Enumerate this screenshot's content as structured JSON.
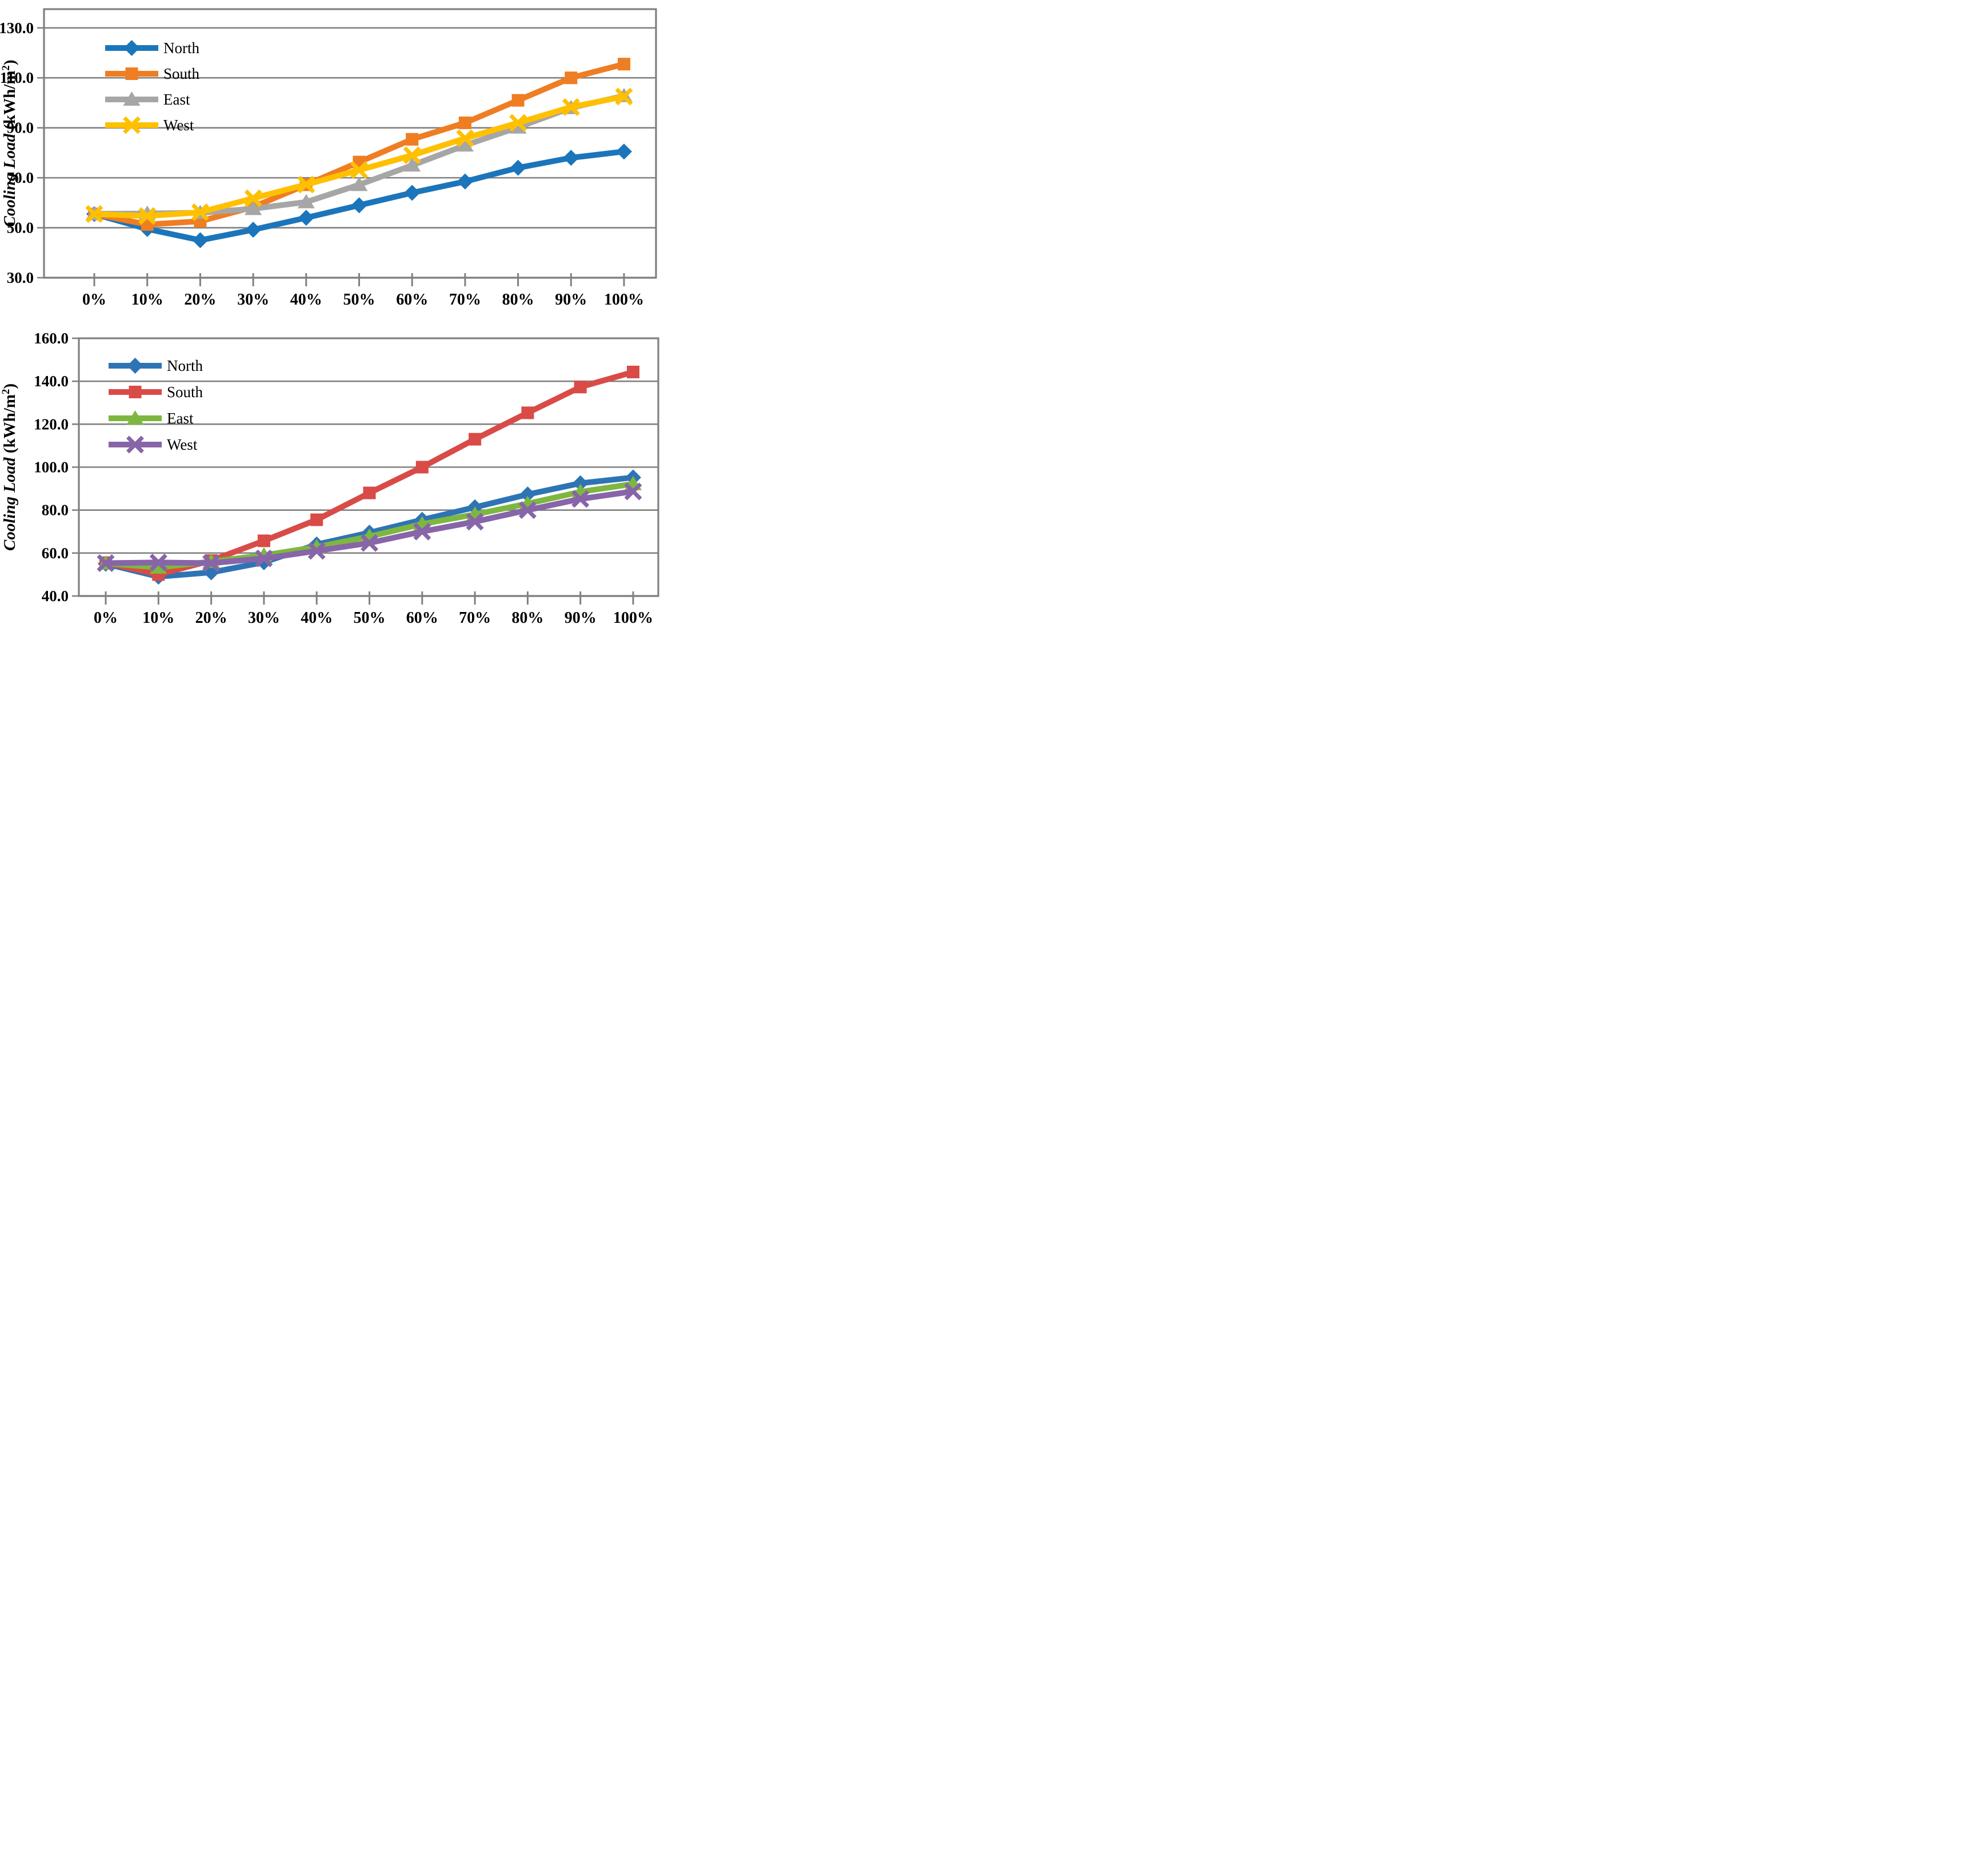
{
  "page": {
    "background": "#ffffff",
    "figure_description": "Two stacked line charts of cooling load versus glazing percentage for four facade orientations"
  },
  "chart_data": [
    {
      "id": "top",
      "type": "line",
      "title": "",
      "xlabel": "",
      "ylabel_italic": "Cooling Load",
      "ylabel_units_prefix": "(kWh/m",
      "ylabel_sup": "2",
      "ylabel_units_suffix": ")",
      "categories": [
        "0%",
        "10%",
        "20%",
        "30%",
        "40%",
        "50%",
        "60%",
        "70%",
        "80%",
        "90%",
        "100%"
      ],
      "ylim": [
        30,
        137.5
      ],
      "yticks": [
        30,
        50,
        70,
        90,
        110,
        130
      ],
      "grid": true,
      "legend_position": "inside-top-left",
      "frame_color": "#808080",
      "series": [
        {
          "name": "North",
          "color": "#1B75BB",
          "marker": "diamond",
          "values": [
            55.5,
            49.5,
            45.0,
            49.2,
            54.0,
            59.0,
            64.0,
            68.5,
            74.0,
            78.0,
            80.5
          ]
        },
        {
          "name": "South",
          "color": "#EF7D22",
          "marker": "square",
          "values": [
            55.5,
            51.3,
            52.6,
            58.3,
            67.2,
            76.3,
            85.4,
            92.0,
            101.0,
            110.0,
            115.5
          ]
        },
        {
          "name": "East",
          "color": "#A6A6A6",
          "marker": "triangle",
          "values": [
            55.6,
            55.7,
            56.0,
            57.6,
            60.3,
            67.2,
            75.0,
            83.0,
            90.2,
            98.0,
            102.8
          ]
        },
        {
          "name": "West",
          "color": "#FFC000",
          "marker": "x",
          "values": [
            55.5,
            54.7,
            56.2,
            61.8,
            67.3,
            73.1,
            79.0,
            85.8,
            92.0,
            98.3,
            102.5
          ]
        }
      ]
    },
    {
      "id": "bottom",
      "type": "line",
      "title": "",
      "xlabel": "",
      "ylabel_italic": "Cooling Load",
      "ylabel_units_prefix": "(kWh/m",
      "ylabel_sup": "2",
      "ylabel_units_suffix": ")",
      "categories": [
        "0%",
        "10%",
        "20%",
        "30%",
        "40%",
        "50%",
        "60%",
        "70%",
        "80%",
        "90%",
        "100%"
      ],
      "ylim": [
        40,
        160
      ],
      "yticks": [
        40,
        60,
        80,
        100,
        120,
        140,
        160
      ],
      "grid": true,
      "legend_position": "inside-top-left",
      "frame_color": "#808080",
      "series": [
        {
          "name": "North",
          "color": "#2E74B5",
          "marker": "diamond",
          "values": [
            55.0,
            49.0,
            51.0,
            55.7,
            64.0,
            69.5,
            75.5,
            81.3,
            87.3,
            92.5,
            95.2
          ]
        },
        {
          "name": "South",
          "color": "#D94B47",
          "marker": "square",
          "values": [
            55.5,
            50.0,
            56.5,
            65.7,
            75.5,
            88.0,
            100.0,
            113.0,
            125.3,
            137.3,
            144.3
          ]
        },
        {
          "name": "East",
          "color": "#7EB73F",
          "marker": "triangle",
          "values": [
            55.2,
            53.3,
            56.0,
            59.0,
            62.8,
            67.7,
            73.5,
            78.0,
            83.0,
            88.5,
            92.2
          ]
        },
        {
          "name": "West",
          "color": "#8765A8",
          "marker": "x",
          "values": [
            55.3,
            55.6,
            55.3,
            57.5,
            61.0,
            64.7,
            70.0,
            74.6,
            80.0,
            85.2,
            88.7
          ]
        }
      ]
    }
  ]
}
